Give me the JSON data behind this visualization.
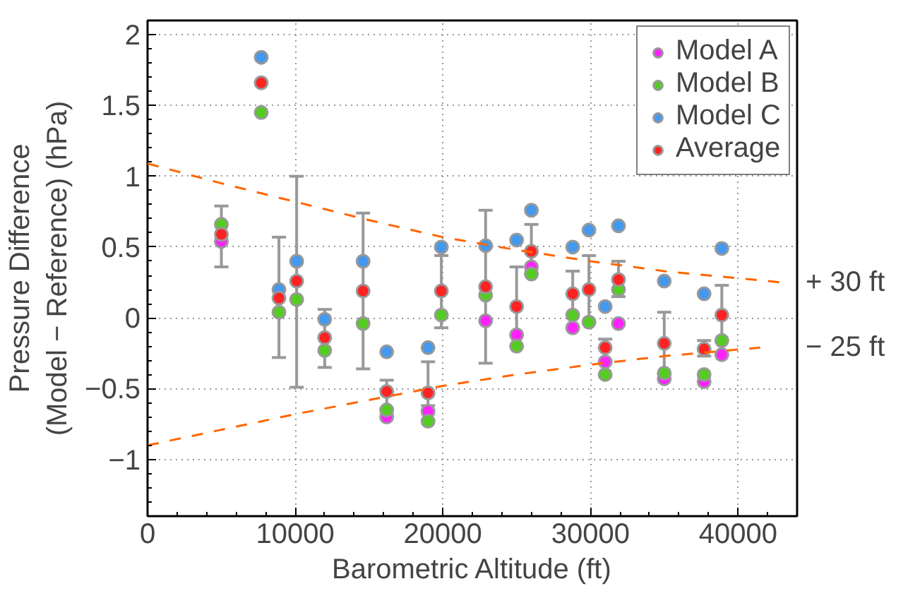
{
  "chart_data": {
    "type": "scatter",
    "xlabel": "Barometric Altitude (ft)",
    "ylabel": "Pressure Difference\n(Model − Reference) (hPa)",
    "x": [
      5000,
      7700,
      8900,
      10100,
      12000,
      14600,
      16200,
      19000,
      19900,
      22900,
      25000,
      26000,
      28800,
      29900,
      31000,
      31900,
      35000,
      37700,
      38900
    ],
    "series": [
      {
        "name": "Model A",
        "color": "#ff22ff",
        "values": [
          0.54,
          null,
          null,
          null,
          null,
          null,
          -0.7,
          -0.66,
          null,
          -0.02,
          -0.12,
          0.36,
          -0.07,
          null,
          -0.31,
          -0.04,
          -0.43,
          -0.45,
          -0.26
        ]
      },
      {
        "name": "Model B",
        "color": "#55cc22",
        "values": [
          0.66,
          1.45,
          0.04,
          0.13,
          -0.23,
          -0.04,
          -0.65,
          -0.73,
          0.02,
          0.16,
          -0.2,
          0.31,
          0.02,
          -0.03,
          -0.4,
          0.2,
          -0.39,
          -0.4,
          -0.16
        ]
      },
      {
        "name": "Model C",
        "color": "#4499ee",
        "values": [
          null,
          1.84,
          0.2,
          0.4,
          -0.01,
          0.4,
          -0.24,
          -0.21,
          0.5,
          0.51,
          0.55,
          0.76,
          0.5,
          0.62,
          0.08,
          0.65,
          0.26,
          0.17,
          0.49
        ]
      },
      {
        "name": "Average",
        "color": "#ff2222",
        "values": [
          0.59,
          1.66,
          0.14,
          0.26,
          -0.14,
          0.19,
          -0.52,
          -0.53,
          0.19,
          0.22,
          0.08,
          0.47,
          0.17,
          0.2,
          -0.21,
          0.27,
          -0.18,
          -0.22,
          0.02
        ],
        "errors": [
          [
            0.36,
            0.79
          ],
          null,
          [
            -0.28,
            0.57
          ],
          [
            -0.49,
            1.0
          ],
          [
            -0.35,
            0.06
          ],
          [
            -0.36,
            0.74
          ],
          [
            -0.65,
            -0.44
          ],
          [
            -0.62,
            -0.31
          ],
          [
            -0.07,
            0.44
          ],
          [
            -0.32,
            0.76
          ],
          [
            -0.2,
            0.36
          ],
          [
            0.31,
            0.66
          ],
          [
            -0.07,
            0.33
          ],
          [
            -0.03,
            0.44
          ],
          [
            -0.31,
            -0.15
          ],
          [
            0.15,
            0.4
          ],
          [
            -0.4,
            0.04
          ],
          [
            -0.27,
            -0.16
          ],
          [
            -0.26,
            0.23
          ]
        ]
      },
      {
        "type": "line",
        "name": "+ 30 ft",
        "color": "#ff6600",
        "line_style": "dashed",
        "marker": "none",
        "x": [
          0,
          5000,
          10000,
          15000,
          20000,
          25000,
          30000,
          35000,
          43000
        ],
        "values": [
          1.09,
          0.95,
          0.82,
          0.69,
          0.57,
          0.48,
          0.4,
          0.33,
          0.25
        ]
      },
      {
        "type": "line",
        "name": "− 25 ft",
        "color": "#ff6600",
        "line_style": "dashed",
        "marker": "none",
        "x": [
          0,
          5000,
          10000,
          15000,
          20000,
          25000,
          30000,
          35000,
          41500
        ],
        "values": [
          -0.9,
          -0.79,
          -0.68,
          -0.58,
          -0.48,
          -0.4,
          -0.33,
          -0.27,
          -0.21
        ]
      }
    ],
    "marker": "circle",
    "xlim": [
      0,
      44000
    ],
    "xticks": [
      0,
      10000,
      20000,
      30000,
      40000
    ],
    "ylim": [
      -1.4,
      2.1
    ],
    "yticks": [
      -1,
      {
        "value": -0.5,
        "label": "−0.5"
      },
      0,
      0.5,
      1,
      1.5,
      2
    ],
    "grid": true,
    "legend": "top right"
  }
}
